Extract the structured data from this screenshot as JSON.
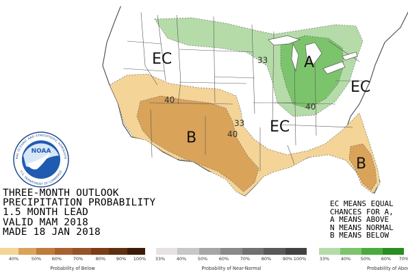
{
  "map": {
    "region_labels": [
      {
        "text": "EC",
        "cls": "ec-west"
      },
      {
        "text": "A",
        "cls": "above-gl"
      },
      {
        "text": "EC",
        "cls": "ec-ne"
      },
      {
        "text": "B",
        "cls": "below-sw"
      },
      {
        "text": "EC",
        "cls": "ec-se"
      },
      {
        "text": "B",
        "cls": "below-fl"
      }
    ],
    "contour_labels": {
      "c33_north": "33",
      "c40_ohio": "40",
      "c40_west": "40",
      "c33_south": "33",
      "c40_south": "40"
    },
    "colors": {
      "below_33": "#f4d497",
      "below_40": "#d9a35a",
      "above_33": "#b5dca8",
      "above_40": "#7cc46b",
      "land": "#ffffff",
      "ocean": "#ffffff"
    }
  },
  "logo": {
    "text": "NOAA",
    "ring_top": "NATIONAL OCEANIC AND ATMOSPHERIC ADMINISTRATION",
    "ring_bottom": "U.S. DEPARTMENT OF COMMERCE"
  },
  "info": {
    "lines": [
      "THREE-MONTH OUTLOOK",
      "PRECIPITATION PROBABILITY",
      "1.5 MONTH LEAD",
      "VALID MAM 2018",
      "MADE 18 JAN 2018"
    ]
  },
  "ec_note": {
    "lines": [
      "EC MEANS EQUAL",
      "CHANCES FOR A,",
      "A MEANS ABOVE",
      "N MEANS NORMAL",
      "B MEANS BELOW"
    ]
  },
  "legends": [
    {
      "title": "Probability of Below",
      "swatch_colors": [
        "#f4d497",
        "#d9a35a",
        "#bd7c3a",
        "#a8612e",
        "#965327",
        "#7a3d16",
        "#5f2f10",
        "#3b1b06"
      ],
      "ticks": [
        "40%",
        "50%",
        "60%",
        "70%",
        "80%",
        "90%",
        "100%"
      ]
    },
    {
      "title": "Probability of Near-Normal",
      "swatch_colors": [
        "#e6e2e2",
        "#c9c6c6",
        "#a8a5a5",
        "#8c8989",
        "#727070",
        "#5a5858",
        "#434242"
      ],
      "ticks": [
        "33%",
        "40%",
        "50%",
        "60%",
        "70%",
        "80%",
        "90%",
        "100%"
      ]
    },
    {
      "title": "Probability of Above",
      "swatch_colors": [
        "#b5dca8",
        "#7cc46b",
        "#4aaa3c",
        "#2a8d23"
      ],
      "ticks": [
        "33%",
        "40%",
        "50%",
        "60%",
        "70%"
      ]
    }
  ]
}
